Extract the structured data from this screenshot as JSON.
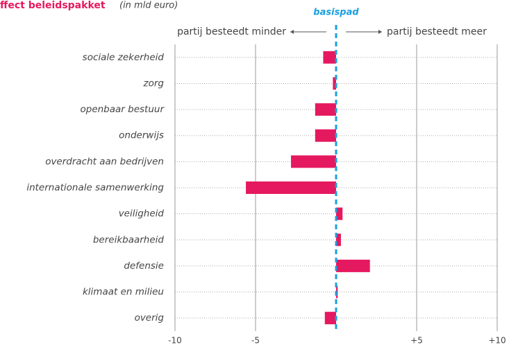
{
  "chart_data": {
    "type": "barh",
    "title": "ffect beleidspakket",
    "subtitle": "(in mld euro)",
    "reference_line": {
      "value": 0,
      "label": "basispad"
    },
    "left_note": "partij besteedt minder",
    "right_note": "partij besteedt meer",
    "categories": [
      "sociale zekerheid",
      "zorg",
      "openbaar bestuur",
      "onderwijs",
      "overdracht aan bedrijven",
      "internationale samenwerking",
      "veiligheid",
      "bereikbaarheid",
      "defensie",
      "klimaat en milieu",
      "overig"
    ],
    "values": [
      -0.8,
      -0.2,
      -1.3,
      -1.3,
      -2.8,
      -5.6,
      0.4,
      0.3,
      2.1,
      0.1,
      -0.7
    ],
    "color": "#e5195f",
    "xlim": [
      -10,
      10
    ],
    "xticks": [
      -10,
      -5,
      {
        "value": 5,
        "label": "+5"
      },
      {
        "value": 10,
        "label": "+10"
      }
    ],
    "grid": true
  }
}
